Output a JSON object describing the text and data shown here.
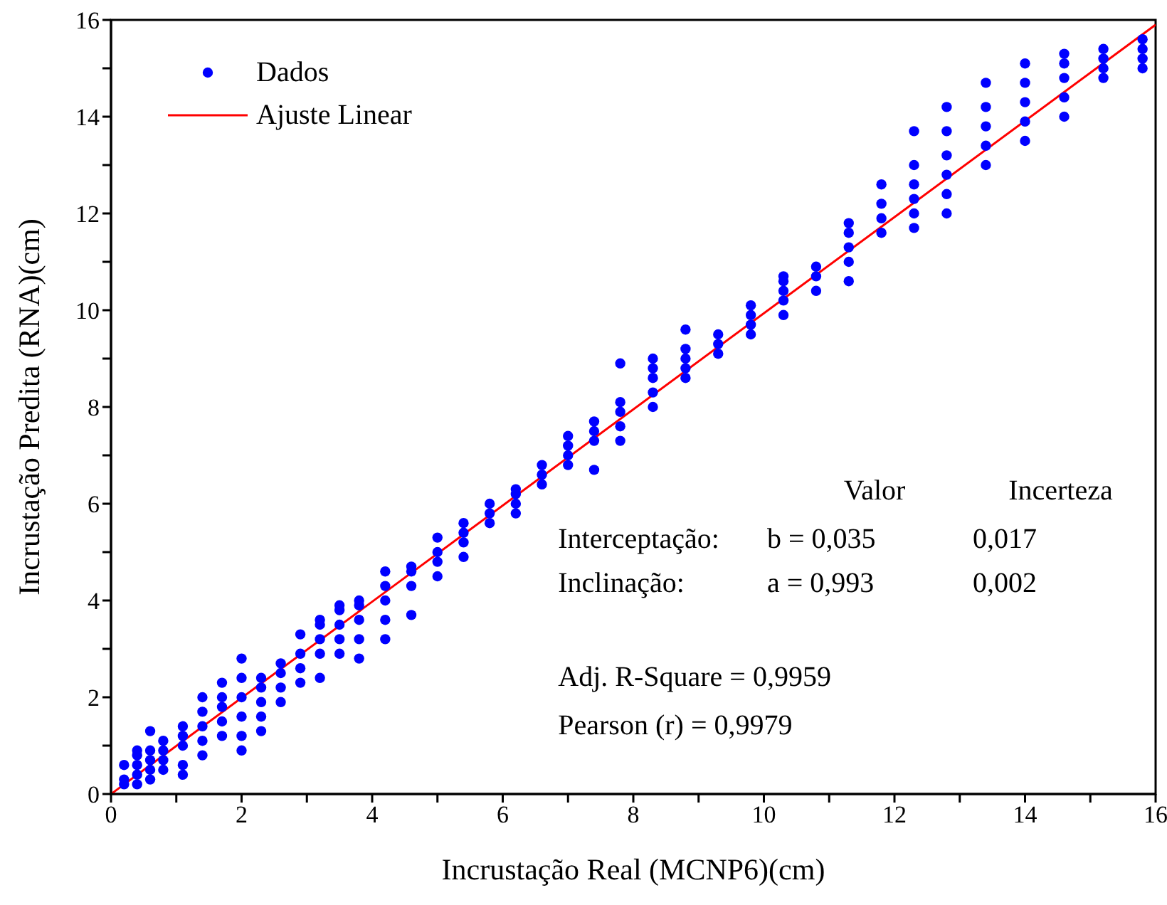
{
  "chart_data": {
    "type": "scatter",
    "xlabel": "Incrustação Real (MCNP6)(cm)",
    "ylabel": "Incrustação Predita (RNA)(cm)",
    "xlim": [
      0,
      16
    ],
    "ylim": [
      0,
      16
    ],
    "xticks": [
      0,
      {
        "value": 1,
        "label": null
      },
      2,
      {
        "value": 3,
        "label": null
      },
      4,
      {
        "value": 5,
        "label": null
      },
      6,
      {
        "value": 7,
        "label": null
      },
      8,
      {
        "value": 9,
        "label": null
      },
      10,
      {
        "value": 11,
        "label": null
      },
      12,
      {
        "value": 13,
        "label": null
      },
      14,
      {
        "value": 15,
        "label": null
      },
      16
    ],
    "yticks": [
      0,
      {
        "value": 1,
        "label": null
      },
      2,
      {
        "value": 3,
        "label": null
      },
      4,
      {
        "value": 5,
        "label": null
      },
      6,
      {
        "value": 7,
        "label": null
      },
      8,
      {
        "value": 9,
        "label": null
      },
      10,
      {
        "value": 11,
        "label": null
      },
      12,
      {
        "value": 13,
        "label": null
      },
      14,
      {
        "value": 15,
        "label": null
      },
      16
    ],
    "grid": false,
    "legend": "top left",
    "marker": "circle",
    "series": [
      {
        "name": "Dados",
        "color": "#0000ff",
        "x": [
          0.2,
          0.2,
          0.2,
          0.4,
          0.4,
          0.4,
          0.4,
          0.4,
          0.6,
          0.6,
          0.6,
          0.6,
          0.6,
          0.8,
          0.8,
          0.8,
          0.8,
          1.1,
          1.1,
          1.1,
          1.1,
          1.1,
          1.4,
          1.4,
          1.4,
          1.4,
          1.4,
          1.7,
          1.7,
          1.7,
          1.7,
          1.7,
          2.0,
          2.0,
          2.0,
          2.0,
          2.0,
          2.0,
          2.3,
          2.3,
          2.3,
          2.3,
          2.3,
          2.6,
          2.6,
          2.6,
          2.6,
          2.9,
          2.9,
          2.9,
          2.9,
          3.2,
          3.2,
          3.2,
          3.2,
          3.2,
          3.5,
          3.5,
          3.5,
          3.5,
          3.5,
          3.8,
          3.8,
          3.8,
          3.8,
          3.8,
          4.2,
          4.2,
          4.2,
          4.2,
          4.2,
          4.6,
          4.6,
          4.6,
          4.6,
          5.0,
          5.0,
          5.0,
          5.0,
          5.4,
          5.4,
          5.4,
          5.4,
          5.8,
          5.8,
          5.8,
          6.2,
          6.2,
          6.2,
          6.2,
          6.6,
          6.6,
          6.6,
          7.0,
          7.0,
          7.0,
          7.0,
          7.4,
          7.4,
          7.4,
          7.4,
          7.8,
          7.8,
          7.8,
          7.8,
          7.8,
          8.3,
          8.3,
          8.3,
          8.3,
          8.3,
          8.8,
          8.8,
          8.8,
          8.8,
          8.8,
          9.3,
          9.3,
          9.3,
          9.8,
          9.8,
          9.8,
          9.8,
          10.3,
          10.3,
          10.3,
          10.3,
          10.3,
          10.8,
          10.8,
          10.8,
          11.3,
          11.3,
          11.3,
          11.3,
          11.3,
          11.8,
          11.8,
          11.8,
          11.8,
          12.3,
          12.3,
          12.3,
          12.3,
          12.3,
          12.3,
          12.8,
          12.8,
          12.8,
          12.8,
          12.8,
          12.8,
          13.4,
          13.4,
          13.4,
          13.4,
          13.4,
          14.0,
          14.0,
          14.0,
          14.0,
          14.0,
          14.6,
          14.6,
          14.6,
          14.6,
          14.6,
          15.2,
          15.2,
          15.2,
          15.2,
          15.8,
          15.8,
          15.8,
          15.8
        ],
        "values": [
          0.3,
          0.6,
          0.2,
          0.2,
          0.4,
          0.6,
          0.8,
          0.9,
          0.3,
          0.5,
          0.7,
          0.9,
          1.3,
          0.5,
          0.7,
          0.9,
          1.1,
          0.4,
          0.6,
          1.0,
          1.2,
          1.4,
          0.8,
          1.1,
          1.4,
          1.7,
          2.0,
          1.2,
          1.5,
          1.8,
          2.0,
          2.3,
          0.9,
          1.2,
          1.6,
          2.0,
          2.4,
          2.8,
          1.3,
          1.6,
          1.9,
          2.2,
          2.4,
          1.9,
          2.2,
          2.5,
          2.7,
          2.3,
          2.6,
          2.9,
          3.3,
          2.4,
          2.9,
          3.2,
          3.5,
          3.6,
          2.9,
          3.2,
          3.5,
          3.8,
          3.9,
          2.8,
          3.2,
          3.6,
          3.9,
          4.0,
          3.2,
          3.6,
          4.0,
          4.3,
          4.6,
          3.7,
          4.3,
          4.6,
          4.7,
          4.5,
          4.8,
          5.0,
          5.3,
          4.9,
          5.2,
          5.4,
          5.6,
          5.6,
          5.8,
          6.0,
          5.8,
          6.0,
          6.2,
          6.3,
          6.4,
          6.6,
          6.8,
          6.8,
          7.0,
          7.2,
          7.4,
          6.7,
          7.3,
          7.5,
          7.7,
          7.3,
          7.6,
          7.9,
          8.1,
          8.9,
          8.0,
          8.3,
          8.6,
          8.8,
          9.0,
          8.6,
          8.8,
          9.0,
          9.2,
          9.6,
          9.1,
          9.3,
          9.5,
          9.5,
          9.7,
          9.9,
          10.1,
          9.9,
          10.2,
          10.4,
          10.6,
          10.7,
          10.4,
          10.7,
          10.9,
          10.6,
          11.0,
          11.3,
          11.6,
          11.8,
          11.6,
          11.9,
          12.2,
          12.6,
          11.7,
          12.0,
          12.3,
          12.6,
          13.0,
          13.7,
          12.0,
          12.4,
          12.8,
          13.2,
          13.7,
          14.2,
          13.0,
          13.4,
          13.8,
          14.2,
          14.7,
          13.5,
          13.9,
          14.3,
          14.7,
          15.1,
          14.0,
          14.4,
          14.8,
          15.1,
          15.3,
          14.8,
          15.0,
          15.2,
          15.4,
          15.0,
          15.2,
          15.4,
          15.6
        ]
      },
      {
        "name": "Ajuste Linear",
        "type": "line",
        "color": "#ff0000",
        "marker": "none",
        "line_style": "solid",
        "x": [
          0,
          16
        ],
        "values": [
          0.0,
          15.9
        ]
      }
    ],
    "annotations": [
      "Valor",
      "Incerteza",
      "Interceptação:",
      "b = 0,035",
      "0,017",
      "Inclinação:",
      "a = 0,993",
      "0,002",
      "Adj. R-Square = 0,9959",
      "Pearson (r) = 0,9979"
    ]
  }
}
